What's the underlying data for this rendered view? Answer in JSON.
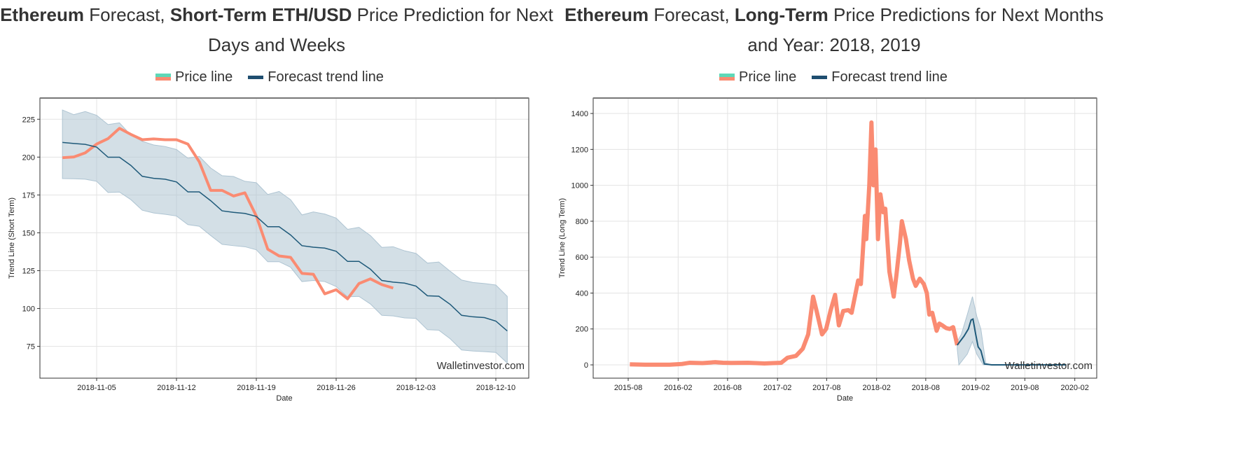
{
  "left": {
    "title_parts": [
      {
        "t": "Ethereum",
        "b": true
      },
      {
        "t": " Forecast, ",
        "b": false
      },
      {
        "t": "Short-Term ETH/USD",
        "b": true
      },
      {
        "t": " Price Prediction for Next Days and Weeks",
        "b": false
      }
    ]
  },
  "right": {
    "title_parts": [
      {
        "t": "Ethereum",
        "b": true
      },
      {
        "t": " Forecast, ",
        "b": false
      },
      {
        "t": "Long-Term",
        "b": true
      },
      {
        "t": " Price Predictions for Next Months and Year: 2018, 2019",
        "b": false
      }
    ]
  },
  "legend": {
    "price": "Price line",
    "trend": "Forecast trend line"
  },
  "colors": {
    "price": "#fa8b72",
    "price_legend_top": "#5fd8b8",
    "trend": "#1f5a7a",
    "band": "#aec4d2"
  },
  "watermark": "Walletinvestor.com",
  "chart_data": [
    {
      "type": "line",
      "xlabel": "Date",
      "ylabel": "Trend Line (Short Term)",
      "ylim": [
        54,
        239
      ],
      "xlim": [
        "2018-10-31",
        "2018-12-12"
      ],
      "grid": true,
      "yticks": [
        75,
        100,
        125,
        150,
        175,
        200,
        225
      ],
      "xticks": [
        "2018-11-05",
        "2018-11-12",
        "2018-11-19",
        "2018-11-26",
        "2018-12-03",
        "2018-12-10"
      ],
      "start_date": "2018-11-02",
      "series": [
        {
          "name": "Price line",
          "values": [
            199.6,
            200.1,
            202.8,
            208.6,
            212.2,
            219,
            215,
            211.5,
            212,
            211.5,
            211.5,
            208.6,
            196.9,
            178,
            178,
            174.3,
            176.4,
            161.1,
            139.2,
            134.7,
            133.8,
            123.2,
            122.6,
            109.7,
            112.4,
            106.4,
            116.5,
            119.6,
            115.8,
            113.5
          ]
        },
        {
          "name": "Forecast trend line",
          "values": [
            209.7,
            209,
            208.4,
            206.6,
            199.9,
            199.9,
            194.5,
            187.3,
            186,
            185.4,
            183.6,
            177,
            177,
            171.2,
            164.5,
            163.5,
            162.8,
            160.8,
            154,
            154,
            148.6,
            141.5,
            140.5,
            139.9,
            137.8,
            131.1,
            131.1,
            126,
            118.5,
            117.4,
            116.8,
            114.8,
            108.4,
            108.1,
            102.7,
            95.5,
            94.5,
            94,
            91.7,
            85.2
          ]
        },
        {
          "band": "upper",
          "values": [
            231.1,
            228,
            230.1,
            227.6,
            221.5,
            222.6,
            214.5,
            210.4,
            208,
            207,
            205,
            199.3,
            200.5,
            192.8,
            187.7,
            187.2,
            184,
            183.1,
            175.3,
            177.3,
            171.9,
            161.8,
            163.8,
            162.4,
            159.7,
            152.3,
            153.6,
            148.2,
            140.4,
            140.8,
            138.1,
            136.4,
            130,
            130.7,
            124.6,
            118.8,
            117.2,
            116.5,
            115.5,
            108
          ]
        },
        {
          "band": "lower",
          "values": [
            185.8,
            185.7,
            185.4,
            184,
            176.6,
            176.9,
            171.9,
            164.9,
            163.1,
            162.2,
            161.1,
            155.4,
            154.3,
            148.2,
            142.4,
            141.5,
            140.8,
            138.8,
            130.9,
            130.9,
            127.3,
            117.8,
            118.5,
            117.8,
            114.5,
            107.7,
            108,
            103,
            95.5,
            95.1,
            93.8,
            93.5,
            86,
            85.7,
            80,
            72.6,
            71.9,
            71.5,
            71,
            64
          ]
        }
      ]
    },
    {
      "type": "line",
      "xlabel": "Date",
      "ylabel": "Trend Line (Long Term)",
      "ylim": [
        -74,
        1486
      ],
      "xlim": [
        "2015-04",
        "2020-05"
      ],
      "grid": true,
      "yticks": [
        0,
        200,
        400,
        600,
        800,
        1000,
        1200,
        1400
      ],
      "xticks": [
        "2015-08",
        "2016-02",
        "2016-08",
        "2017-02",
        "2017-08",
        "2018-02",
        "2018-08",
        "2019-02",
        "2019-08",
        "2020-02"
      ],
      "series": [
        {
          "name": "Price line",
          "points": [
            [
              "2015-08-07",
              3
            ],
            [
              "2015-10-01",
              1
            ],
            [
              "2016-01-01",
              1
            ],
            [
              "2016-02-15",
              5
            ],
            [
              "2016-03-15",
              12
            ],
            [
              "2016-05-01",
              10
            ],
            [
              "2016-06-15",
              15
            ],
            [
              "2016-07-15",
              12
            ],
            [
              "2016-08-15",
              11
            ],
            [
              "2016-10-15",
              12
            ],
            [
              "2016-12-15",
              8
            ],
            [
              "2017-01-15",
              10
            ],
            [
              "2017-02-15",
              12
            ],
            [
              "2017-03-10",
              40
            ],
            [
              "2017-04-10",
              50
            ],
            [
              "2017-05-05",
              90
            ],
            [
              "2017-05-25",
              170
            ],
            [
              "2017-06-12",
              380
            ],
            [
              "2017-06-25",
              300
            ],
            [
              "2017-07-15",
              170
            ],
            [
              "2017-07-30",
              200
            ],
            [
              "2017-08-15",
              300
            ],
            [
              "2017-09-01",
              390
            ],
            [
              "2017-09-15",
              220
            ],
            [
              "2017-10-01",
              300
            ],
            [
              "2017-10-20",
              305
            ],
            [
              "2017-11-01",
              290
            ],
            [
              "2017-11-25",
              470
            ],
            [
              "2017-12-05",
              450
            ],
            [
              "2017-12-15",
              700
            ],
            [
              "2017-12-20",
              830
            ],
            [
              "2017-12-25",
              700
            ],
            [
              "2018-01-05",
              1000
            ],
            [
              "2018-01-13",
              1350
            ],
            [
              "2018-01-20",
              1000
            ],
            [
              "2018-01-28",
              1200
            ],
            [
              "2018-02-06",
              700
            ],
            [
              "2018-02-15",
              950
            ],
            [
              "2018-02-25",
              850
            ],
            [
              "2018-03-05",
              870
            ],
            [
              "2018-03-20",
              520
            ],
            [
              "2018-04-05",
              380
            ],
            [
              "2018-04-15",
              500
            ],
            [
              "2018-04-28",
              680
            ],
            [
              "2018-05-05",
              800
            ],
            [
              "2018-05-20",
              700
            ],
            [
              "2018-06-01",
              580
            ],
            [
              "2018-06-15",
              480
            ],
            [
              "2018-06-25",
              440
            ],
            [
              "2018-07-10",
              480
            ],
            [
              "2018-07-25",
              450
            ],
            [
              "2018-08-05",
              400
            ],
            [
              "2018-08-14",
              280
            ],
            [
              "2018-08-25",
              290
            ],
            [
              "2018-09-10",
              190
            ],
            [
              "2018-09-20",
              230
            ],
            [
              "2018-10-01",
              220
            ],
            [
              "2018-10-15",
              205
            ],
            [
              "2018-10-28",
              200
            ],
            [
              "2018-11-10",
              210
            ],
            [
              "2018-11-25",
              110
            ]
          ]
        },
        {
          "name": "Forecast trend line",
          "points": [
            [
              "2018-11-25",
              110
            ],
            [
              "2018-12-20",
              160
            ],
            [
              "2019-01-05",
              200
            ],
            [
              "2019-01-15",
              250
            ],
            [
              "2019-01-22",
              255
            ],
            [
              "2019-02-01",
              170
            ],
            [
              "2019-02-10",
              100
            ],
            [
              "2019-02-20",
              80
            ],
            [
              "2019-03-05",
              5
            ],
            [
              "2019-04-01",
              0
            ],
            [
              "2020-01-01",
              0
            ]
          ]
        },
        {
          "band": "upper",
          "points": [
            [
              "2018-11-25",
              130
            ],
            [
              "2018-12-10",
              170
            ],
            [
              "2019-01-01",
              280
            ],
            [
              "2019-01-20",
              380
            ],
            [
              "2019-02-05",
              270
            ],
            [
              "2019-02-20",
              200
            ],
            [
              "2019-03-10",
              10
            ],
            [
              "2019-04-01",
              0
            ],
            [
              "2020-01-01",
              0
            ]
          ]
        },
        {
          "band": "lower",
          "points": [
            [
              "2018-11-25",
              90
            ],
            [
              "2018-12-01",
              0
            ],
            [
              "2019-01-01",
              60
            ],
            [
              "2019-01-20",
              130
            ],
            [
              "2019-02-05",
              60
            ],
            [
              "2019-03-01",
              0
            ],
            [
              "2020-01-01",
              0
            ]
          ]
        }
      ]
    }
  ]
}
